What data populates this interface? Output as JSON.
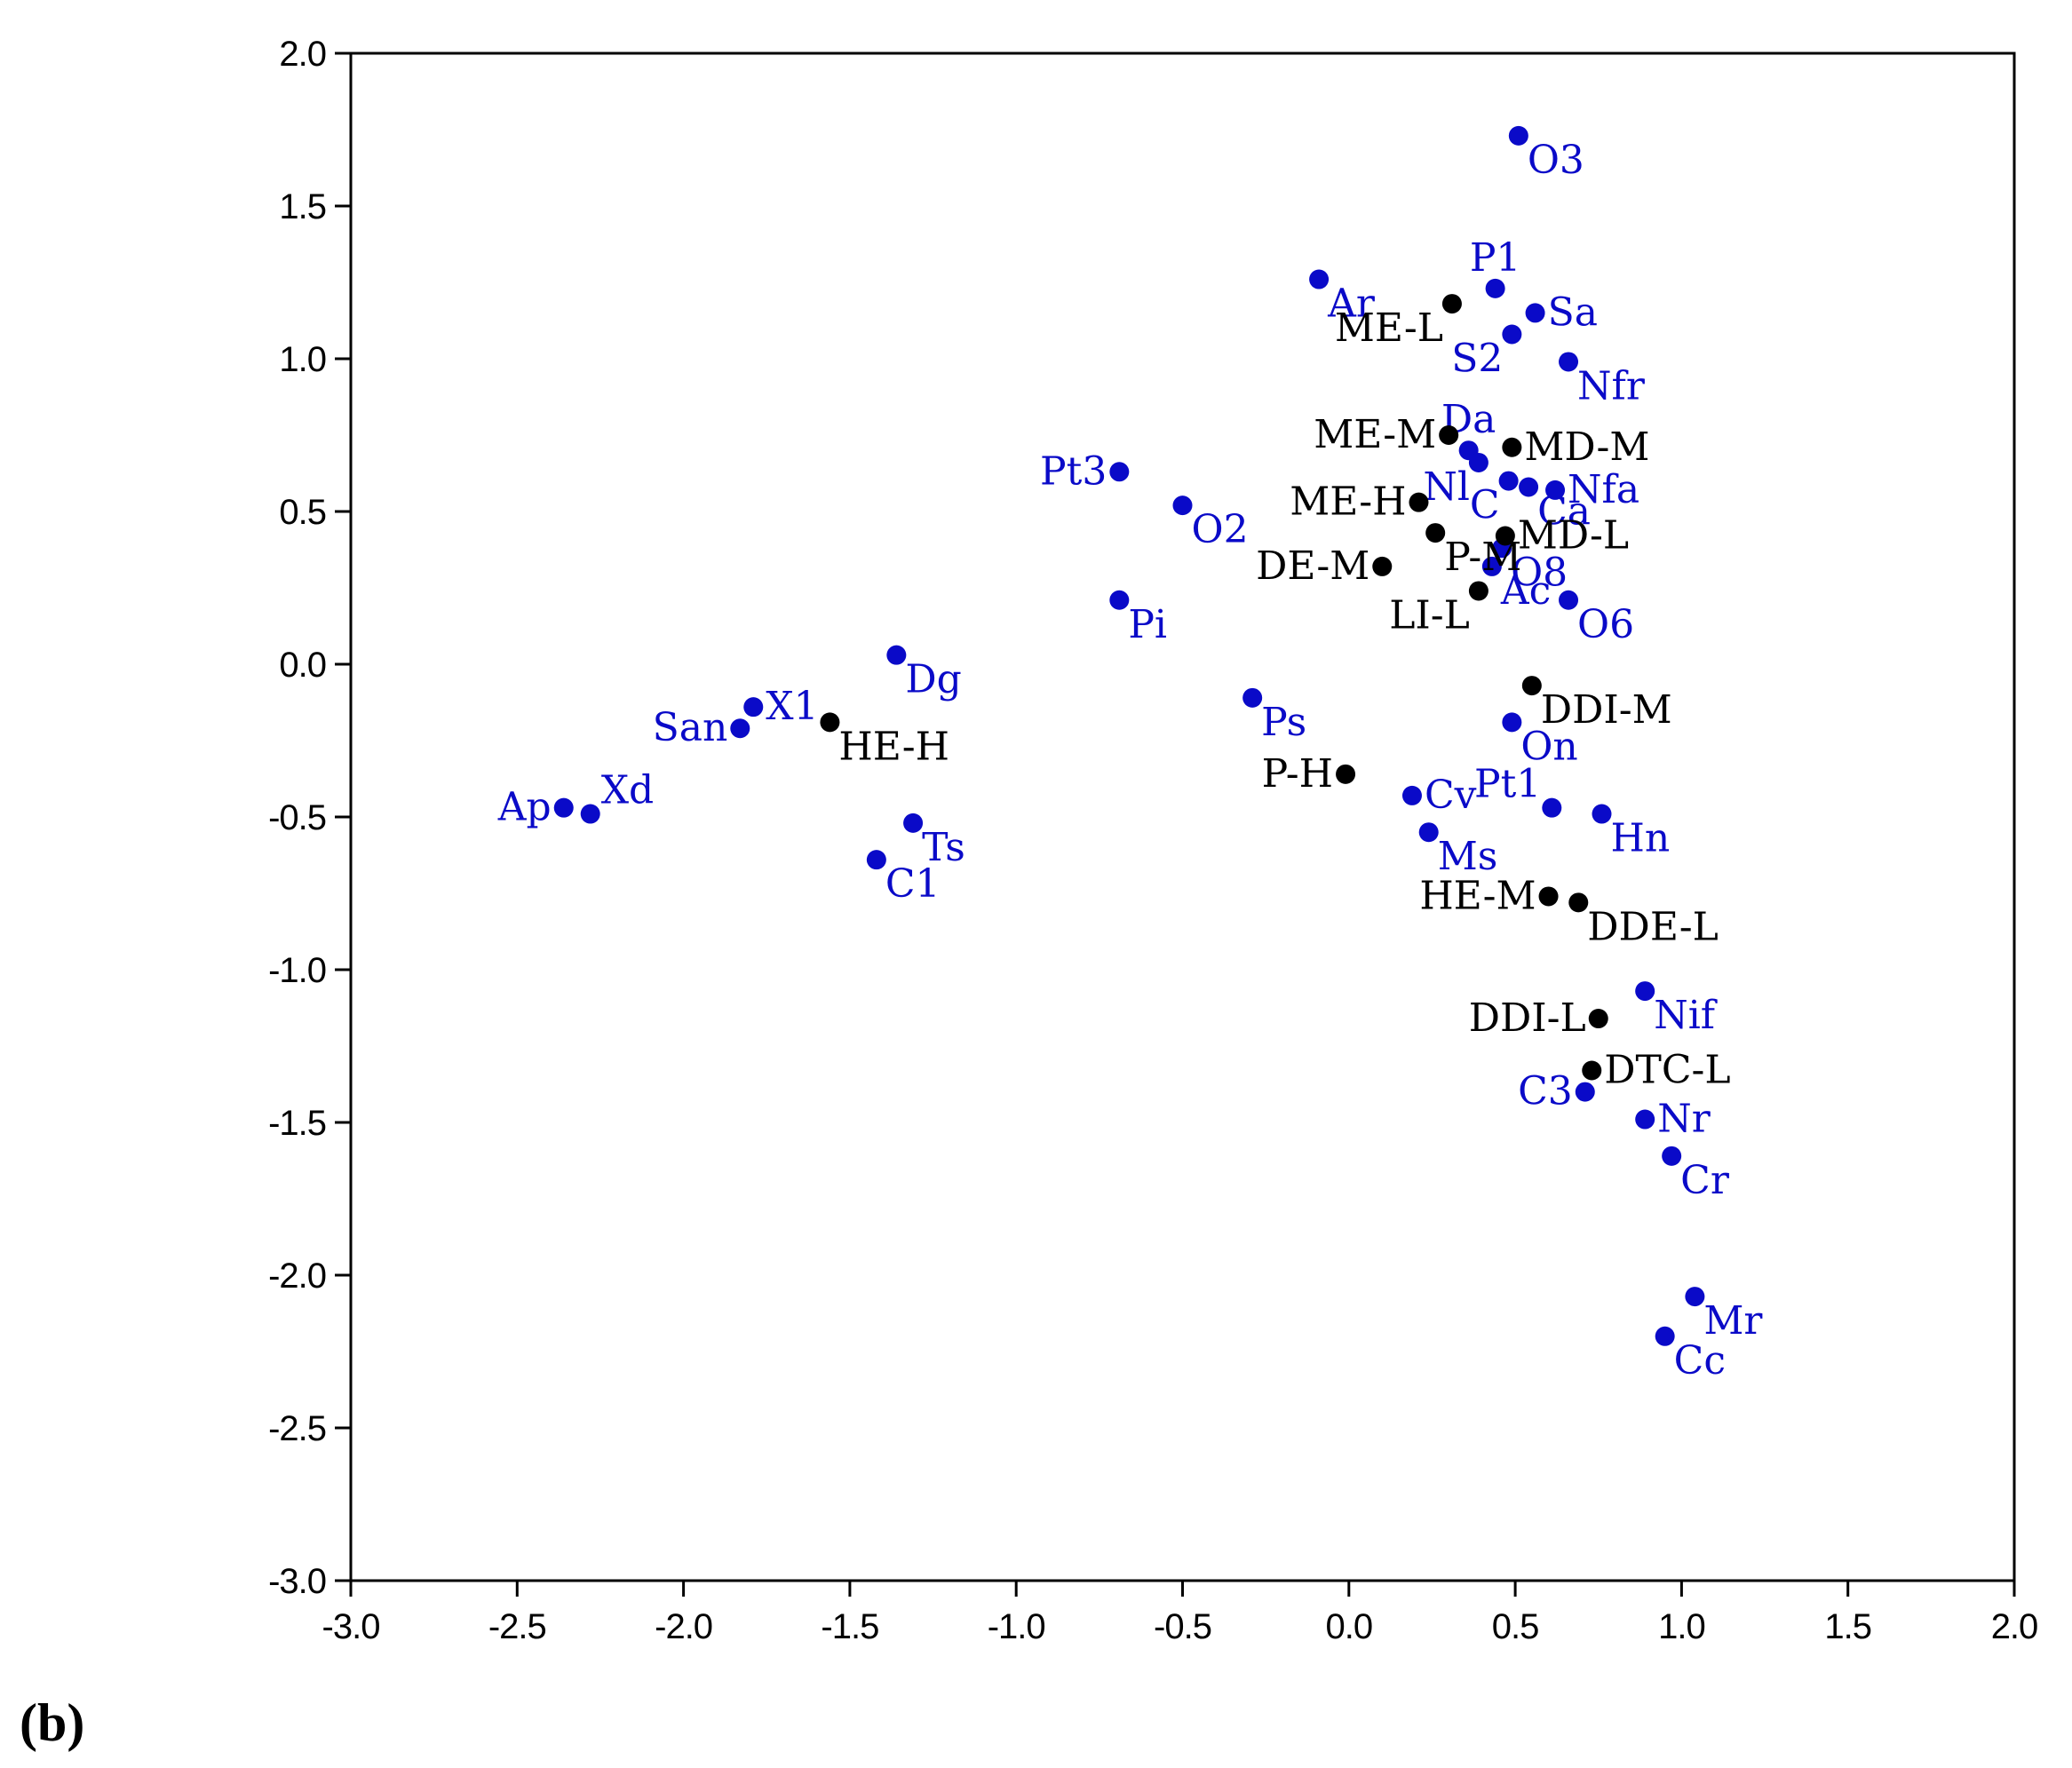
{
  "panel_label": "(b)",
  "colors": {
    "species": "#0a0ac8",
    "variables": "#000000"
  },
  "chart_data": {
    "type": "scatter",
    "title": "",
    "xlabel": "",
    "ylabel": "",
    "xlim": [
      -3.0,
      2.0
    ],
    "ylim": [
      -3.0,
      2.0
    ],
    "grid": false,
    "x_ticks": [
      "-3.0",
      "-2.5",
      "-2.0",
      "-1.5",
      "-1.0",
      "-0.5",
      "0.0",
      "0.5",
      "1.0",
      "1.5",
      "2.0"
    ],
    "y_ticks": [
      "2.0",
      "1.5",
      "1.0",
      "0.5",
      "0.0",
      "-0.5",
      "-1.0",
      "-1.5",
      "-2.0",
      "-2.5",
      "-3.0"
    ],
    "series": [
      {
        "color": "#0a0ac8",
        "points": [
          {
            "label": "O3",
            "x": 0.51,
            "y": 1.73,
            "pos": "se"
          },
          {
            "label": "P1",
            "x": 0.44,
            "y": 1.23,
            "pos": "n"
          },
          {
            "label": "Ar",
            "x": -0.09,
            "y": 1.26,
            "pos": "se"
          },
          {
            "label": "Sa",
            "x": 0.56,
            "y": 1.15,
            "pos": "e"
          },
          {
            "label": "S2",
            "x": 0.49,
            "y": 1.08,
            "pos": "sw"
          },
          {
            "label": "Nfr",
            "x": 0.66,
            "y": 0.99,
            "pos": "se"
          },
          {
            "label": "Da",
            "x": 0.36,
            "y": 0.7,
            "pos": "n"
          },
          {
            "label": "Nl",
            "x": 0.39,
            "y": 0.66,
            "pos": "sw"
          },
          {
            "label": "C",
            "x": 0.48,
            "y": 0.6,
            "pos": "sw"
          },
          {
            "label": "Nfa",
            "x": 0.62,
            "y": 0.57,
            "pos": "e"
          },
          {
            "label": "Ca",
            "x": 0.54,
            "y": 0.58,
            "pos": "se"
          },
          {
            "label": "Pt3",
            "x": -0.69,
            "y": 0.63,
            "pos": "w"
          },
          {
            "label": "O2",
            "x": -0.5,
            "y": 0.52,
            "pos": "se"
          },
          {
            "label": "O8",
            "x": 0.46,
            "y": 0.38,
            "pos": "se"
          },
          {
            "label": "Ac",
            "x": 0.43,
            "y": 0.32,
            "pos": "se"
          },
          {
            "label": "O6",
            "x": 0.66,
            "y": 0.21,
            "pos": "se"
          },
          {
            "label": "Pi",
            "x": -0.69,
            "y": 0.21,
            "pos": "se"
          },
          {
            "label": "Dg",
            "x": -1.36,
            "y": 0.03,
            "pos": "se"
          },
          {
            "label": "Ps",
            "x": -0.29,
            "y": -0.11,
            "pos": "se"
          },
          {
            "label": "On",
            "x": 0.49,
            "y": -0.19,
            "pos": "se"
          },
          {
            "label": "X1",
            "x": -1.79,
            "y": -0.14,
            "pos": "e"
          },
          {
            "label": "San",
            "x": -1.83,
            "y": -0.21,
            "pos": "w"
          },
          {
            "label": "Xd",
            "x": -2.28,
            "y": -0.49,
            "pos": "ne"
          },
          {
            "label": "Ap",
            "x": -2.36,
            "y": -0.47,
            "pos": "w"
          },
          {
            "label": "Pt1",
            "x": 0.61,
            "y": -0.47,
            "pos": "nw"
          },
          {
            "label": "Hn",
            "x": 0.76,
            "y": -0.49,
            "pos": "se"
          },
          {
            "label": "Cv",
            "x": 0.19,
            "y": -0.43,
            "pos": "e"
          },
          {
            "label": "Ms",
            "x": 0.24,
            "y": -0.55,
            "pos": "se"
          },
          {
            "label": "Ts",
            "x": -1.31,
            "y": -0.52,
            "pos": "se"
          },
          {
            "label": "C1",
            "x": -1.42,
            "y": -0.64,
            "pos": "se"
          },
          {
            "label": "Nif",
            "x": 0.89,
            "y": -1.07,
            "pos": "se"
          },
          {
            "label": "C3",
            "x": 0.71,
            "y": -1.4,
            "pos": "w"
          },
          {
            "label": "Nr",
            "x": 0.89,
            "y": -1.49,
            "pos": "e"
          },
          {
            "label": "Cr",
            "x": 0.97,
            "y": -1.61,
            "pos": "se"
          },
          {
            "label": "Mr",
            "x": 1.04,
            "y": -2.07,
            "pos": "se"
          },
          {
            "label": "Cc",
            "x": 0.95,
            "y": -2.2,
            "pos": "se"
          }
        ]
      },
      {
        "color": "#000000",
        "points": [
          {
            "label": "ME-L",
            "x": 0.31,
            "y": 1.18,
            "pos": "sw"
          },
          {
            "label": "ME-M",
            "x": 0.3,
            "y": 0.75,
            "pos": "w"
          },
          {
            "label": "MD-M",
            "x": 0.49,
            "y": 0.71,
            "pos": "e"
          },
          {
            "label": "ME-H",
            "x": 0.21,
            "y": 0.53,
            "pos": "w"
          },
          {
            "label": "MD-L",
            "x": 0.47,
            "y": 0.42,
            "pos": "e"
          },
          {
            "label": "P-M",
            "x": 0.26,
            "y": 0.43,
            "pos": "se"
          },
          {
            "label": "DE-M",
            "x": 0.1,
            "y": 0.32,
            "pos": "w"
          },
          {
            "label": "LI-L",
            "x": 0.39,
            "y": 0.24,
            "pos": "sw"
          },
          {
            "label": "DDI-M",
            "x": 0.55,
            "y": -0.07,
            "pos": "se"
          },
          {
            "label": "HE-H",
            "x": -1.56,
            "y": -0.19,
            "pos": "se"
          },
          {
            "label": "P-H",
            "x": -0.01,
            "y": -0.36,
            "pos": "w"
          },
          {
            "label": "HE-M",
            "x": 0.6,
            "y": -0.76,
            "pos": "w"
          },
          {
            "label": "DDE-L",
            "x": 0.69,
            "y": -0.78,
            "pos": "se"
          },
          {
            "label": "DDI-L",
            "x": 0.75,
            "y": -1.16,
            "pos": "w"
          },
          {
            "label": "DTC-L",
            "x": 0.73,
            "y": -1.33,
            "pos": "e"
          }
        ]
      }
    ]
  }
}
